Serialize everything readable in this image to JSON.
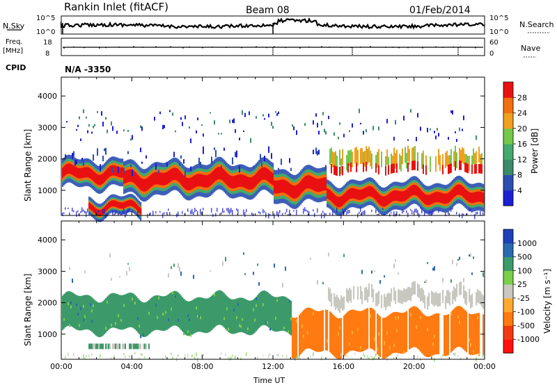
{
  "header": {
    "station": "Rankin Inlet (fitACF)",
    "beam": "Beam 08",
    "date": "01/Feb/2014"
  },
  "status_panel": {
    "nsky_label": "N.Sky",
    "nsearch_label": "N.Search",
    "nsky_ticks": [
      "10^5",
      "10^0"
    ],
    "nsearch_ticks": [
      "10^5",
      "10^0"
    ],
    "freq_label_1": "Freq.",
    "freq_label_2": "[MHz]",
    "freq_ticks": [
      "18",
      "8"
    ],
    "nave_label": "Nave",
    "nave_ticks": [
      "60",
      "0"
    ],
    "cpid_label": "CPID",
    "cpid_value": "N/A -3350"
  },
  "colors": {
    "power_scale": [
      "#1e1ed2",
      "#2a4fb0",
      "#3c8a6a",
      "#44a96c",
      "#74c94c",
      "#f0a020",
      "#f07010",
      "#e81010"
    ],
    "velocity_scale": [
      "#ff1010",
      "#f23a10",
      "#ff7a10",
      "#ffaa30",
      "#c9c9c1",
      "#7ad04a",
      "#3c9a6a",
      "#2a6ab0",
      "#1e40b8"
    ],
    "ground_scatter": "#c8c8c0"
  },
  "chart_data": [
    {
      "type": "heatmap",
      "name": "power",
      "ylabel": "Slant Range [km]",
      "yticks": [
        "1000",
        "2000",
        "3000",
        "4000"
      ],
      "ylim": [
        200,
        4600
      ],
      "xlim": [
        0,
        24
      ],
      "xlabel": "Time UT",
      "xticks": [
        "00:00",
        "04:00",
        "08:00",
        "12:00",
        "16:00",
        "20:00",
        "00:00"
      ],
      "colorbar": {
        "label": "Power [dB]",
        "ticks": [
          "4",
          "8",
          "12",
          "16",
          "20",
          "24",
          "28"
        ],
        "range": [
          0,
          32
        ]
      },
      "echo_bands": [
        {
          "t": [
            0,
            3.5
          ],
          "range_km": [
            1150,
            1900
          ],
          "level": "strong"
        },
        {
          "t": [
            3.5,
            12
          ],
          "range_km": [
            900,
            1800
          ],
          "level": "strong"
        },
        {
          "t": [
            12,
            15
          ],
          "range_km": [
            650,
            1600
          ],
          "level": "strong"
        },
        {
          "t": [
            15,
            24
          ],
          "range_km": [
            450,
            1200
          ],
          "level": "strong"
        },
        {
          "t": [
            1.5,
            4.5
          ],
          "range_km": [
            250,
            700
          ],
          "level": "strong"
        },
        {
          "t": [
            15,
            24
          ],
          "range_km": [
            1400,
            2400
          ],
          "level": "moderate"
        },
        {
          "t": [
            0,
            15
          ],
          "range_km": [
            1600,
            2400
          ],
          "level": "weak"
        }
      ]
    },
    {
      "type": "heatmap",
      "name": "velocity",
      "ylabel": "Slant Range [km]",
      "yticks": [
        "1000",
        "2000",
        "3000",
        "4000"
      ],
      "ylim": [
        200,
        4600
      ],
      "xlim": [
        0,
        24
      ],
      "xlabel": "Time UT",
      "xticks": [
        "00:00",
        "04:00",
        "08:00",
        "12:00",
        "16:00",
        "20:00",
        "00:00"
      ],
      "colorbar": {
        "label": "Velocity [m s⁻¹]",
        "ticks": [
          "1000",
          "500",
          "100",
          "25",
          "-25",
          "-100",
          "-500",
          "-1000"
        ]
      },
      "echo_bands": [
        {
          "t": [
            0,
            13
          ],
          "range_km": [
            1100,
            2200
          ],
          "velocity": "positive (+100 to +500)"
        },
        {
          "t": [
            13,
            24
          ],
          "range_km": [
            400,
            1700
          ],
          "velocity": "negative (-100 to -500)"
        },
        {
          "t": [
            15,
            24
          ],
          "range_km": [
            1800,
            2500
          ],
          "velocity": "ground scatter"
        }
      ]
    }
  ]
}
